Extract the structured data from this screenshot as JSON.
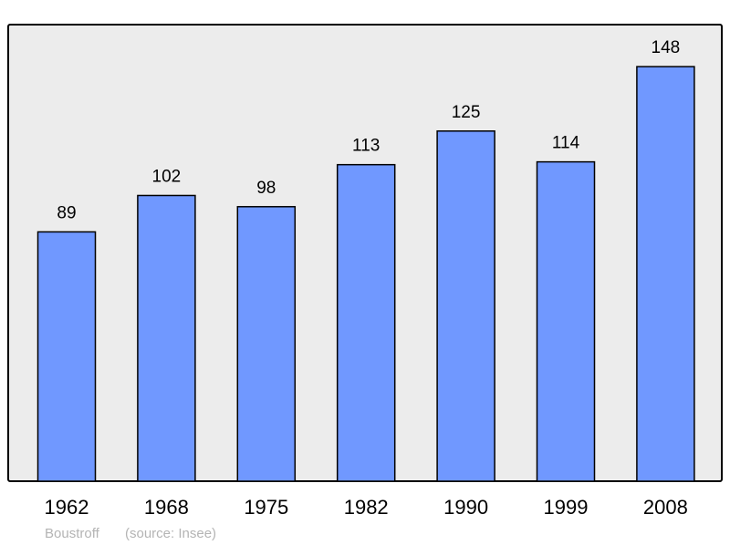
{
  "chart_data": {
    "type": "bar",
    "categories": [
      "1962",
      "1968",
      "1975",
      "1982",
      "1990",
      "1999",
      "2008"
    ],
    "values": [
      89,
      102,
      98,
      113,
      125,
      114,
      148
    ],
    "title": "",
    "xlabel": "",
    "ylabel": "",
    "ylim": [
      0,
      163
    ],
    "grid": false,
    "data_labels": true,
    "colors": {
      "bar": "#7098ff",
      "plot_background": "#ececec",
      "frame": "#000000",
      "footer_text": "#b4b4b4"
    }
  },
  "footer": {
    "author": "Boustroff",
    "source": "(source: Insee)"
  }
}
